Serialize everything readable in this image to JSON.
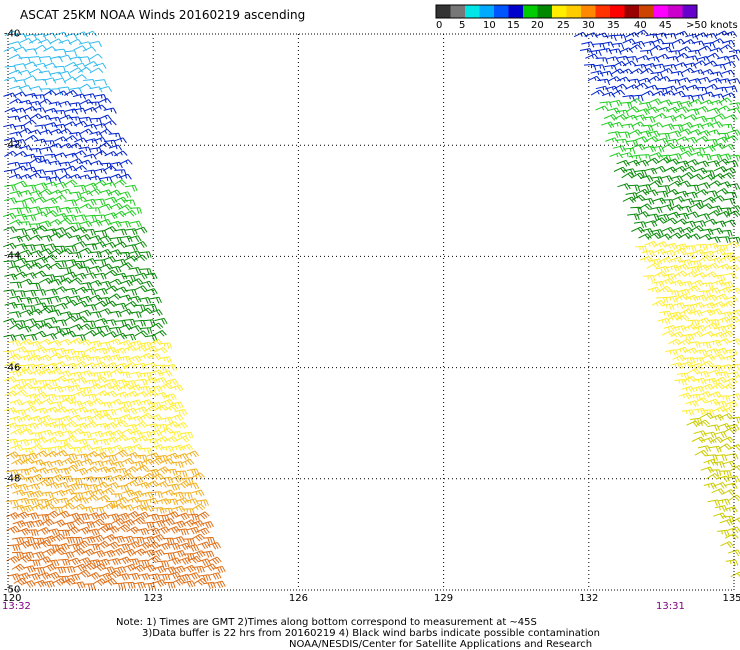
{
  "title": "ASCAT 25KM NOAA Winds 20160219 ascending",
  "colorbar": {
    "colors": [
      "#333333",
      "#777777",
      "#00e6e6",
      "#00aaff",
      "#0055ff",
      "#0000cc",
      "#00cc00",
      "#008800",
      "#ffee00",
      "#ffcc00",
      "#ff8800",
      "#ff3300",
      "#ff0000",
      "#990000",
      "#cc4400",
      "#ff00ff",
      "#cc00cc",
      "#6600cc"
    ],
    "labels": [
      "0",
      "5",
      "10",
      "15",
      "20",
      "25",
      "30",
      "35",
      "40",
      "45",
      ">50 knots"
    ]
  },
  "axes": {
    "x_ticks": [
      "120",
      "123",
      "126",
      "129",
      "132",
      "135"
    ],
    "y_ticks": [
      "-40",
      "-42",
      "-44",
      "-46",
      "-48",
      "-50"
    ],
    "x_range": [
      120,
      135
    ],
    "y_range": [
      -50,
      -40
    ],
    "grid": true
  },
  "time_labels": {
    "left": "13:32",
    "right": "13:31"
  },
  "notes": [
    "Note: 1) Times are GMT 2)Times along bottom correspond to measurement at ~45S",
    "3)Data buffer is 22 hrs from 20160219 4) Black wind barbs indicate possible contamination",
    "NOAA/NESDIS/Center for Satellite Applications and Research"
  ],
  "swaths": [
    {
      "name_key": "west",
      "lon_left_top": 119.8,
      "lon_right_top": 121.8,
      "lon_left_bottom": 120.0,
      "lon_right_bottom": 124.5
    },
    {
      "name_key": "east",
      "lon_left_top": 131.7,
      "lon_right_top": 135.2,
      "lon_left_bottom": 135.0,
      "lon_right_bottom": 135.2
    }
  ],
  "wind_bands": [
    {
      "lat_from": -40.0,
      "lat_to": -41.0,
      "color": "#33bbee",
      "speed_kt": 12
    },
    {
      "lat_from": -41.0,
      "lat_to": -42.6,
      "color": "#0022cc",
      "speed_kt": 17
    },
    {
      "lat_from": -42.6,
      "lat_to": -43.5,
      "color": "#22cc22",
      "speed_kt": 21
    },
    {
      "lat_from": -43.5,
      "lat_to": -45.5,
      "color": "#0a8a0a",
      "speed_kt": 22
    },
    {
      "lat_from": -45.5,
      "lat_to": -47.5,
      "color": "#ffee33",
      "speed_kt": 26
    },
    {
      "lat_from": -47.5,
      "lat_to": -48.6,
      "color": "#f2b020",
      "speed_kt": 28
    },
    {
      "lat_from": -48.6,
      "lat_to": -50.0,
      "color": "#e07018",
      "speed_kt": 32
    }
  ],
  "east_wind_bands": [
    {
      "lat_from": -40.0,
      "lat_to": -41.2,
      "color": "#0022cc",
      "speed_kt": 17
    },
    {
      "lat_from": -41.2,
      "lat_to": -42.2,
      "color": "#22cc22",
      "speed_kt": 20
    },
    {
      "lat_from": -42.2,
      "lat_to": -43.8,
      "color": "#0a8a0a",
      "speed_kt": 22
    },
    {
      "lat_from": -43.8,
      "lat_to": -46.8,
      "color": "#ffee33",
      "speed_kt": 26
    },
    {
      "lat_from": -46.8,
      "lat_to": -50.0,
      "color": "#cccc00",
      "speed_kt": 24
    }
  ]
}
